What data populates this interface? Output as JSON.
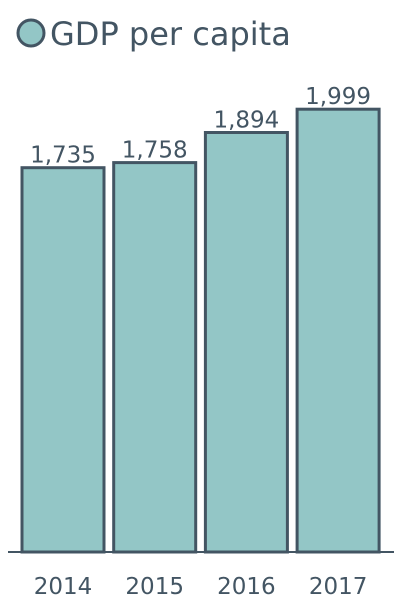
{
  "chart_data": {
    "type": "bar",
    "categories": [
      "2014",
      "2015",
      "2016",
      "2017"
    ],
    "series": [
      {
        "name": "GDP per capita",
        "values": [
          1735,
          1758,
          1894,
          1999
        ]
      }
    ],
    "data_labels": [
      "1,735",
      "1,758",
      "1,894",
      "1,999"
    ],
    "ylim": [
      0,
      2000
    ],
    "grid": false,
    "legend_position": "top-left",
    "colors": {
      "bar_fill": "#93c6c6",
      "stroke": "#435563",
      "text": "#435563"
    }
  }
}
